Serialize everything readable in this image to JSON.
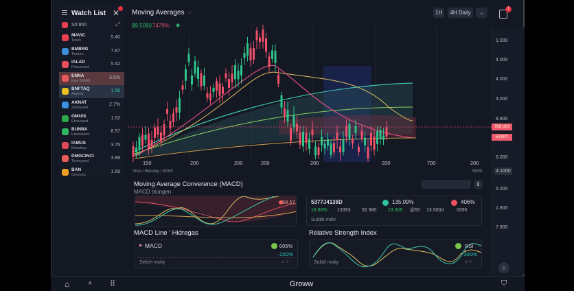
{
  "watchlist": {
    "title": "Watch List",
    "search_value": "S0:800",
    "items": [
      {
        "name": "MAVIC",
        "sub": "Tesck",
        "price": "5.40",
        "icon_color": "#e8404f"
      },
      {
        "name": "BMBRG",
        "sub": "Tasturs",
        "price": "7.87",
        "icon_color": "#3b8fd8"
      },
      {
        "name": "IALAD",
        "sub": "Prousrsed",
        "price": "5.42",
        "icon_color": "#e8505a"
      },
      {
        "name": "ENNA",
        "sub": "Eaw 5k500",
        "price": "3.5%",
        "icon_color": "#e85a5a",
        "highlight": "#5a3a3e"
      },
      {
        "name": "BNFTAQ",
        "sub": "Aranns",
        "price": "1.56",
        "icon_color": "#e8c020",
        "highlight": "#2a3344",
        "price_color": "#2ec4a0"
      },
      {
        "name": "AKNAT",
        "sub": "Zoonsoed",
        "price": "2.7%",
        "icon_color": "#3b8fe0"
      },
      {
        "name": "OMUIS",
        "sub": "Etxrvused",
        "price": "1.52",
        "icon_color": "#2ea84a"
      },
      {
        "name": "BUNBA",
        "sub": "Emissiwas",
        "price": "8.57",
        "icon_color": "#2eb860"
      },
      {
        "name": "IAMUS",
        "sub": "Emsdorg",
        "price": "3.75",
        "icon_color": "#e04858"
      },
      {
        "name": "DMGCINCI",
        "sub": "Tantoysed",
        "price": "3.88",
        "icon_color": "#e85a5a"
      },
      {
        "name": "BAN",
        "sub": "Covococ",
        "price": "1.58",
        "icon_color": "#f0a020"
      }
    ]
  },
  "header": {
    "title": "Moving Averages",
    "price": "$9.5090",
    "change": "7479%",
    "timeframes": [
      "1H",
      "4H Daily"
    ],
    "notification_count": "1"
  },
  "price_axis": [
    "1.000",
    "4.000",
    "4.000",
    "3.000",
    "8.800",
    "6.000",
    "5.000",
    "1.800",
    "7.800"
  ],
  "price_tags": [
    "768 UIO",
    "54,00Y"
  ],
  "current_price": "4.1000",
  "x_axis": [
    "150",
    "200",
    "200",
    "200",
    "200",
    "200",
    "700",
    "200"
  ],
  "chart_footer": {
    "left": "Nso / Bessky / 8000",
    "right": "5000"
  },
  "macd": {
    "title": "Moving Average Converence (MACD)",
    "subtitle": "MACD blungen",
    "value": "58.57",
    "stats": {
      "code": "5377J4136D",
      "v1": "135.09%",
      "v2": "406%",
      "row": [
        "18.80%",
        "13393",
        "92.980",
        "13.305",
        "@50",
        "13.500d",
        "0095"
      ],
      "note": "Suldel mdiv"
    }
  },
  "macd_line": {
    "title": "MACD Line ' Hidregas",
    "label": "MACD",
    "v1": "005%",
    "v2": "-200%",
    "note": "Selich moliy"
  },
  "rsi": {
    "title": "Relative Strength Index",
    "label": "RSI",
    "v2": "-300%",
    "note": "Soldd moliy"
  },
  "colors": {
    "up": "#2ec48a",
    "down": "#f0506a",
    "accent": "#2ec4b6"
  },
  "nav": {
    "brand": "Groww"
  }
}
